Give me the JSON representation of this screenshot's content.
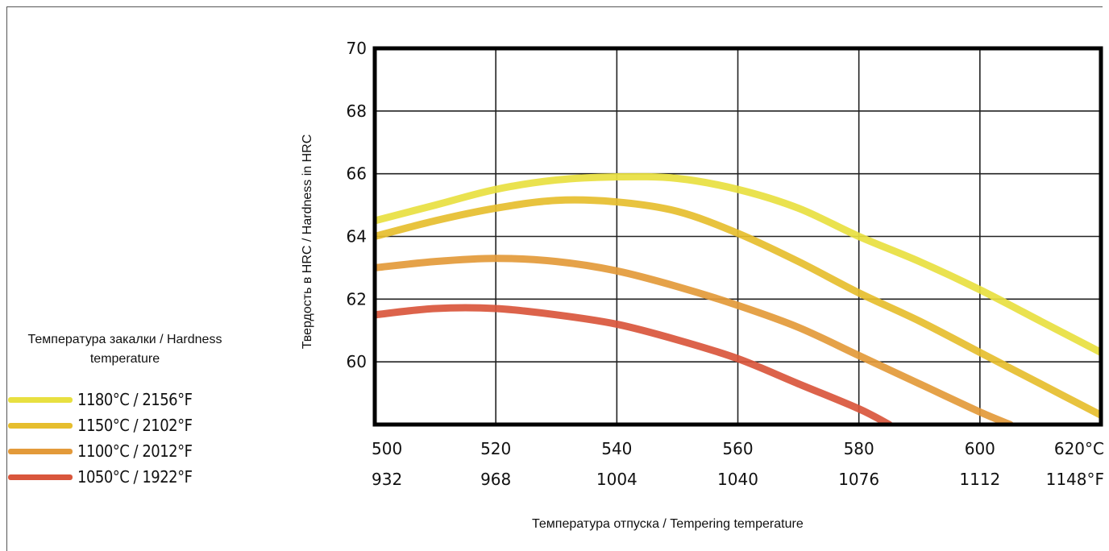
{
  "chart_data": {
    "type": "line",
    "ylabel": "Твердость в HRC / Hardness in HRC",
    "xlabel": "Температура отпуска / Tempering temperature",
    "x_ticks": [
      {
        "c": "500",
        "f": "932"
      },
      {
        "c": "520",
        "f": "968"
      },
      {
        "c": "540",
        "f": "1004"
      },
      {
        "c": "560",
        "f": "1040"
      },
      {
        "c": "580",
        "f": "1076"
      },
      {
        "c": "600",
        "f": "1112"
      },
      {
        "c": "620°C",
        "f": "1148°F"
      }
    ],
    "y_ticks": [
      "60",
      "62",
      "64",
      "66",
      "68",
      "70"
    ],
    "xlim": [
      500,
      620
    ],
    "ylim": [
      58,
      70
    ],
    "grid": true,
    "legend_title": "Температура закалки / Hardness temperature",
    "series": [
      {
        "name": "1180°C / 2156°F",
        "color": "#e8e040",
        "x": [
          500,
          510,
          520,
          530,
          540,
          550,
          560,
          570,
          580,
          590,
          600,
          610,
          620
        ],
        "y": [
          64.5,
          65.0,
          65.5,
          65.8,
          65.9,
          65.85,
          65.5,
          64.9,
          64.0,
          63.2,
          62.3,
          61.3,
          60.3
        ]
      },
      {
        "name": "1150°C / 2102°F",
        "color": "#e6be2e",
        "x": [
          500,
          510,
          520,
          530,
          540,
          550,
          560,
          570,
          580,
          590,
          600,
          610,
          620
        ],
        "y": [
          64.0,
          64.5,
          64.9,
          65.15,
          65.1,
          64.8,
          64.1,
          63.2,
          62.2,
          61.3,
          60.3,
          59.3,
          58.3
        ]
      },
      {
        "name": "1100°C / 2012°F",
        "color": "#e39a3a",
        "x": [
          500,
          510,
          520,
          530,
          540,
          550,
          560,
          570,
          580,
          590,
          600,
          605
        ],
        "y": [
          63.0,
          63.2,
          63.3,
          63.2,
          62.9,
          62.4,
          61.8,
          61.1,
          60.2,
          59.3,
          58.4,
          58.0
        ]
      },
      {
        "name": "1050°C / 1922°F",
        "color": "#d9563c",
        "x": [
          500,
          510,
          520,
          530,
          540,
          550,
          560,
          570,
          580,
          585
        ],
        "y": [
          61.5,
          61.7,
          61.7,
          61.5,
          61.2,
          60.7,
          60.1,
          59.3,
          58.5,
          58.0
        ]
      }
    ]
  }
}
